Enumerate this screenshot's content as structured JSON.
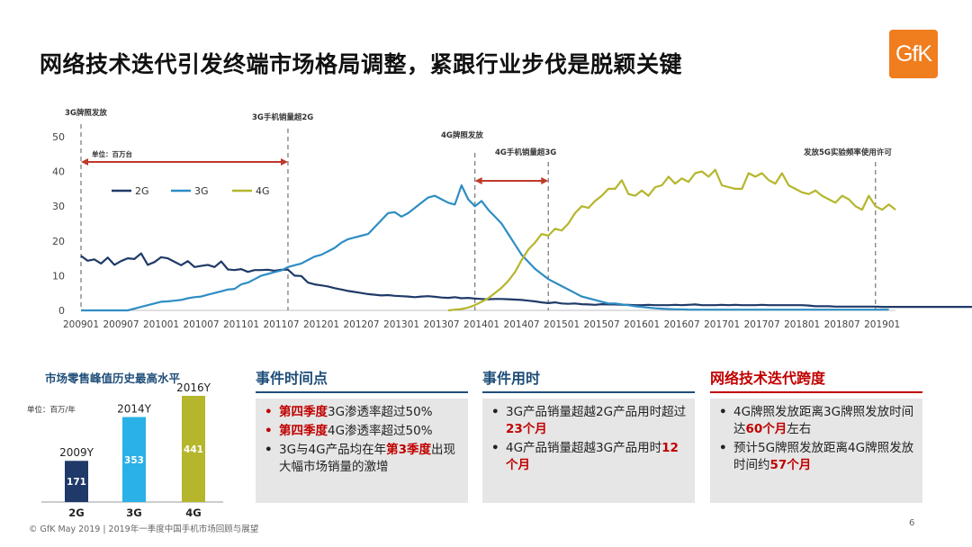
{
  "title": "网络技术迭代引发终端市场格局调整，紧跟行业步伐是脱颖关键",
  "logo_text": "GfK",
  "colors": {
    "series_2g": "#1f3a68",
    "series_3g": "#2e8dc4",
    "series_4g": "#b5b62c",
    "red": "#c00000",
    "blue_title": "#1f4e79"
  },
  "chart_data": [
    {
      "type": "line",
      "unit": "单位：百万台",
      "ylim": [
        0,
        50
      ],
      "yticks": [
        0,
        10,
        20,
        30,
        40,
        50
      ],
      "x_tick_labels": [
        "200901",
        "200907",
        "201001",
        "201007",
        "201101",
        "201107",
        "201201",
        "201207",
        "201301",
        "201307",
        "201401",
        "201407",
        "201501",
        "201507",
        "201601",
        "201607",
        "201701",
        "201707",
        "201801",
        "201807",
        "201901"
      ],
      "x_start": "200901",
      "x_end": "201903",
      "series": [
        {
          "name": "2G",
          "color": "#1f3a68",
          "values": [
            15.7,
            14.3,
            14.7,
            13.5,
            15.2,
            13.1,
            14.2,
            15.0,
            14.8,
            16.4,
            13.1,
            13.9,
            15.3,
            15.0,
            14.0,
            13.0,
            14.2,
            12.5,
            12.8,
            13.1,
            12.5,
            14.1,
            11.8,
            11.6,
            11.9,
            11.1,
            11.6,
            11.6,
            11.7,
            11.4,
            11.7,
            11.7,
            10.0,
            9.9,
            8.0,
            7.5,
            7.2,
            6.9,
            6.4,
            6.0,
            5.6,
            5.3,
            5.0,
            4.7,
            4.5,
            4.3,
            4.4,
            4.2,
            4.1,
            4.0,
            3.8,
            4.0,
            4.1,
            3.9,
            3.7,
            3.6,
            3.8,
            3.5,
            3.6,
            3.4,
            3.3,
            3.2,
            3.3,
            3.3,
            3.2,
            3.1,
            3.0,
            2.8,
            2.6,
            2.3,
            2.1,
            2.3,
            2.0,
            1.9,
            2.0,
            1.8,
            1.7,
            1.6,
            1.8,
            1.7,
            1.7,
            1.6,
            1.6,
            1.5,
            1.5,
            1.6,
            1.5,
            1.5,
            1.5,
            1.6,
            1.5,
            1.6,
            1.7,
            1.5,
            1.5,
            1.5,
            1.6,
            1.5,
            1.6,
            1.5,
            1.5,
            1.5,
            1.6,
            1.5,
            1.5,
            1.5,
            1.5,
            1.5,
            1.5,
            1.4,
            1.2,
            1.2,
            1.2,
            1.1,
            1.1,
            1.1,
            1.1,
            1.1,
            1.1,
            1.1,
            1.0,
            1.0,
            1.0,
            1.0,
            1.0,
            1.0,
            1.0,
            1.0,
            1.0,
            1.0,
            1.0,
            1.0,
            1.0,
            1.0,
            1.0,
            1.0,
            1.0,
            1.0,
            1.0,
            1.0,
            1.0,
            1.0,
            1.0,
            1.0,
            1.0,
            1.0,
            1.0,
            1.0,
            1.0,
            1.0,
            1.0,
            1.0,
            1.0,
            1.0,
            1.0,
            1.0,
            1.0,
            1.0,
            1.0,
            1.0,
            1.0,
            1.0,
            1.0,
            1.0,
            1.0,
            1.0,
            1.0,
            1.0,
            1.0,
            1.0,
            1.0,
            1.0,
            1.0,
            1.0,
            1.0,
            1.0,
            1.0,
            1.0,
            1.0,
            1.0,
            1.0
          ]
        },
        {
          "name": "3G",
          "color": "#2e8dc4",
          "values": [
            0,
            0,
            0,
            0,
            0,
            0,
            0,
            0,
            0.5,
            1.0,
            1.5,
            2.0,
            2.5,
            2.6,
            2.8,
            3.0,
            3.5,
            3.8,
            4.0,
            4.5,
            5.0,
            5.5,
            6.0,
            6.2,
            7.5,
            8.0,
            9.0,
            10.0,
            10.5,
            11.0,
            11.5,
            12.5,
            13.0,
            13.5,
            14.5,
            15.5,
            16.0,
            17.0,
            18.0,
            19.5,
            20.5,
            21.0,
            21.5,
            22.0,
            24.0,
            26.0,
            28.0,
            28.3,
            27.0,
            28.0,
            29.5,
            31.0,
            32.5,
            33.0,
            32.0,
            31.0,
            30.5,
            36.0,
            32.0,
            30.0,
            31.5,
            29.0,
            27.0,
            25.0,
            22.0,
            19.0,
            16.0,
            14.0,
            12.0,
            10.5,
            9.0,
            8.0,
            7.0,
            6.0,
            5.0,
            4.0,
            3.5,
            3.0,
            2.5,
            2.0,
            2.0,
            1.7,
            1.5,
            1.2,
            1.0,
            0.8,
            0.6,
            0.5,
            0.4,
            0.3,
            0.3,
            0.2,
            0.2,
            0.2,
            0.2,
            0.2,
            0.2,
            0.2,
            0.2,
            0.2,
            0.2,
            0.2,
            0.2,
            0.2,
            0.2,
            0.2,
            0.2,
            0.2,
            0.2,
            0.2,
            0.2,
            0.2,
            0.2,
            0.2,
            0.2,
            0.2,
            0.2,
            0.2,
            0.2,
            0.2,
            0.2,
            0.2
          ]
        },
        {
          "name": "4G",
          "color": "#b5b62c",
          "values": [
            null,
            null,
            null,
            null,
            null,
            null,
            null,
            null,
            null,
            null,
            null,
            null,
            null,
            null,
            null,
            null,
            null,
            null,
            null,
            null,
            null,
            null,
            null,
            null,
            null,
            null,
            null,
            null,
            null,
            null,
            null,
            null,
            null,
            null,
            null,
            null,
            null,
            null,
            null,
            null,
            null,
            null,
            null,
            null,
            null,
            null,
            null,
            null,
            null,
            null,
            null,
            null,
            null,
            null,
            null,
            0,
            0.2,
            0.4,
            0.8,
            1.5,
            2.5,
            3.5,
            5.0,
            6.5,
            8.5,
            11.0,
            14.5,
            17.5,
            19.5,
            22.0,
            21.5,
            23.5,
            23.0,
            25.0,
            28.0,
            30.0,
            29.5,
            31.5,
            33.0,
            35.0,
            35.0,
            37.5,
            33.5,
            33.0,
            34.5,
            33.0,
            35.5,
            36.0,
            38.5,
            36.5,
            38.0,
            37.0,
            39.5,
            40.0,
            38.5,
            40.5,
            36.0,
            35.5,
            35.0,
            35.0,
            39.5,
            38.5,
            39.5,
            37.5,
            36.5,
            39.5,
            36.0,
            35.0,
            34.0,
            33.5,
            34.5,
            33.0,
            32.0,
            31.0,
            33.0,
            32.0,
            30.0,
            29.0,
            33.0,
            30.0,
            29.0,
            30.5,
            29.0
          ]
        }
      ],
      "annotations": [
        {
          "label": "3G牌照发放",
          "at": "200901"
        },
        {
          "label": "3G手机销量超2G",
          "at": "201108"
        },
        {
          "label": "4G牌照发放",
          "at": "201312"
        },
        {
          "label": "4G手机销量超3G",
          "at": "201411"
        },
        {
          "label": "发放5G实验频率使用许可",
          "at": "201812"
        }
      ]
    },
    {
      "type": "bar",
      "title": "市场零售峰值历史最高水平",
      "unit": "单位：百万/年",
      "categories": [
        "2G",
        "3G",
        "4G"
      ],
      "values": [
        171,
        353,
        441
      ],
      "year_labels": [
        "2009Y",
        "2014Y",
        "2016Y"
      ],
      "colors": [
        "#1f3a68",
        "#2ab1e6",
        "#b5b62c"
      ]
    }
  ],
  "panels": [
    {
      "title": "事件时间点",
      "items": [
        {
          "parts": [
            {
              "t": "第四季度",
              "hl": true
            },
            {
              "t": "3G渗透率超过50%",
              "hl": false
            }
          ],
          "dot": "red"
        },
        {
          "parts": [
            {
              "t": "第四季度",
              "hl": true
            },
            {
              "t": "4G渗透率超过50%",
              "hl": false
            }
          ],
          "dot": "red"
        },
        {
          "parts": [
            {
              "t": "3G与4G产品均在年",
              "hl": false
            },
            {
              "t": "第3季度",
              "hl": true
            },
            {
              "t": "出现大幅市场销量的激增",
              "hl": false
            }
          ],
          "dot": "dark"
        }
      ]
    },
    {
      "title": "事件用时",
      "items": [
        {
          "parts": [
            {
              "t": "3G产品销量超越2G产品用时超过",
              "hl": false
            },
            {
              "t": "23个月",
              "hl": true
            }
          ],
          "dot": "dark"
        },
        {
          "parts": [
            {
              "t": "4G产品销量超越3G产品用时",
              "hl": false
            },
            {
              "t": "12个月",
              "hl": true
            }
          ],
          "dot": "dark"
        }
      ]
    },
    {
      "title": "网络技术迭代跨度",
      "items": [
        {
          "parts": [
            {
              "t": "4G牌照发放距离3G牌照发放时间达",
              "hl": false
            },
            {
              "t": "60个月",
              "hl": true
            },
            {
              "t": "左右",
              "hl": false
            }
          ],
          "dot": "dark"
        },
        {
          "parts": [
            {
              "t": "预计5G牌照发放距离4G牌照发放时间约",
              "hl": false
            },
            {
              "t": "57个月",
              "hl": true
            }
          ],
          "dot": "dark"
        }
      ]
    }
  ],
  "footer": "© GfK May 2019 | 2019年一季度中国手机市场回顾与展望",
  "page_number": "6"
}
